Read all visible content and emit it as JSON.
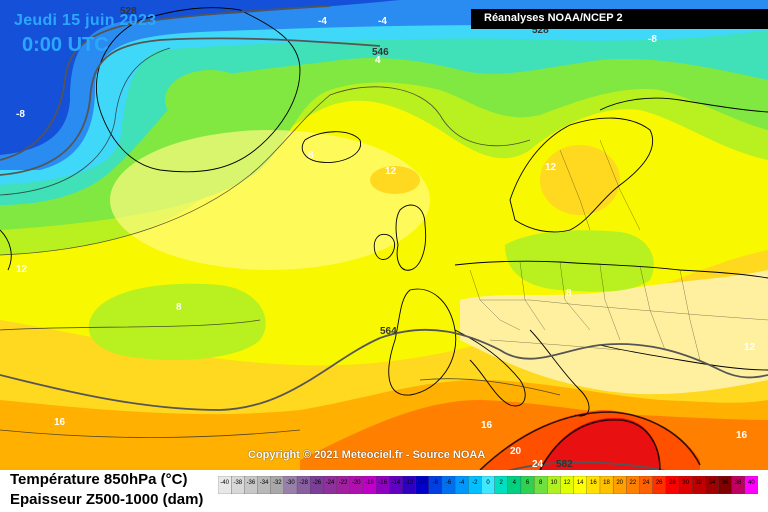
{
  "header": {
    "date": "Jeudi 15 juin 2023",
    "time": "0:00 UTC",
    "source": "Réanalyses NOAA/NCEP 2"
  },
  "copyright": "Copyright © 2021 Meteociel.fr - Source NOAA",
  "legend": {
    "line1": "Température 850hPa (°C)",
    "line2": "Epaisseur Z500-1000 (dam)",
    "scale_values": [
      "-40",
      "-38",
      "-36",
      "-34",
      "-32",
      "-30",
      "-28",
      "-26",
      "-24",
      "-22",
      "-20",
      "-18",
      "-16",
      "-14",
      "-12",
      "-10",
      "-8",
      "-6",
      "-4",
      "-2",
      "0",
      "2",
      "4",
      "6",
      "8",
      "10",
      "12",
      "14",
      "16",
      "18",
      "20",
      "22",
      "24",
      "26",
      "28",
      "30",
      "32",
      "34",
      "36",
      "38",
      "40"
    ],
    "scale_colors": [
      "#e8e8e8",
      "#d8d8d8",
      "#c8c8c8",
      "#b8b8b8",
      "#a8a8a8",
      "#9880a8",
      "#8860a0",
      "#7a4098",
      "#90309a",
      "#a020a0",
      "#b010b0",
      "#c000c8",
      "#9000c0",
      "#6000c0",
      "#3000c0",
      "#0000c8",
      "#0040e0",
      "#0070f0",
      "#0098ff",
      "#00c0ff",
      "#40e8ff",
      "#00e0c0",
      "#00d080",
      "#30d050",
      "#70e040",
      "#b0f020",
      "#e0ff00",
      "#ffff00",
      "#ffe000",
      "#ffc000",
      "#ffa000",
      "#ff8000",
      "#ff6000",
      "#ff3000",
      "#ff0000",
      "#e00000",
      "#c00000",
      "#a00000",
      "#800000",
      "#c00060",
      "#ff00ff"
    ]
  },
  "map_labels": {
    "isotherms": [
      "-4",
      "-4",
      "4",
      "-8",
      "-8",
      "8",
      "12",
      "12",
      "12",
      "8",
      "8",
      "12",
      "16",
      "16",
      "20",
      "24",
      "16",
      "-8"
    ],
    "thickness": [
      "528",
      "528",
      "546",
      "564",
      "582"
    ]
  },
  "colors": {
    "deep_blue": "#1450d8",
    "blue": "#2a8cf0",
    "cyan": "#40d8f8",
    "teal": "#40e0b8",
    "green": "#80e840",
    "lime": "#b8f020",
    "yellow": "#f8f800",
    "pale_yellow": "#fff8a0",
    "gold": "#ffd820",
    "orange": "#ff9000",
    "red_orange": "#ff5000",
    "red": "#e81010"
  }
}
